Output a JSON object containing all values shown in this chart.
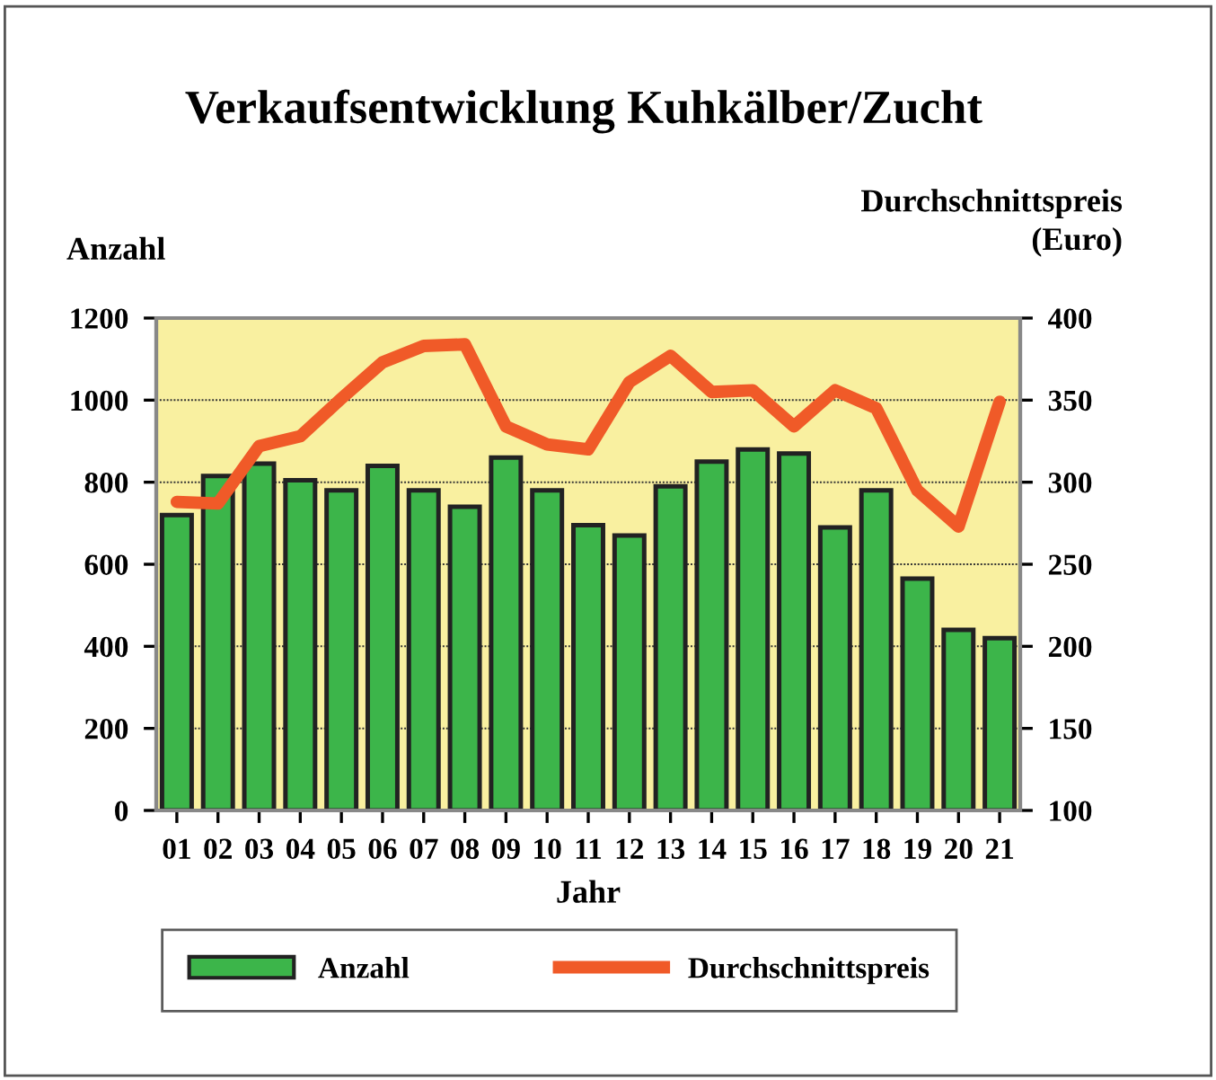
{
  "chart_data": {
    "type": "bar",
    "title": "Verkaufsentwicklung Kuhkälber/Zucht",
    "xlabel": "Jahr",
    "ylabel": "Anzahl",
    "y2label": "Durchschnittspreis\n(Euro)",
    "categories": [
      "01",
      "02",
      "03",
      "04",
      "05",
      "06",
      "07",
      "08",
      "09",
      "10",
      "11",
      "12",
      "13",
      "14",
      "15",
      "16",
      "17",
      "18",
      "19",
      "20",
      "21"
    ],
    "series": [
      {
        "name": "Anzahl",
        "color": "#3cb54a",
        "values": [
          720,
          815,
          845,
          805,
          780,
          840,
          780,
          740,
          860,
          780,
          695,
          670,
          790,
          850,
          880,
          870,
          690,
          780,
          565,
          440,
          420
        ]
      },
      {
        "name": "Durchschnittspreis",
        "type": "line",
        "axis": "y2",
        "color": "#f05a28",
        "values": [
          288,
          287,
          322,
          328,
          351,
          373,
          383,
          384,
          334,
          323,
          320,
          361,
          377,
          355,
          356,
          334,
          356,
          345,
          295,
          273,
          349
        ]
      }
    ],
    "ylim": [
      0,
      1200
    ],
    "yticks": [
      0,
      200,
      400,
      600,
      800,
      1000,
      1200
    ],
    "y2lim": [
      100,
      400
    ],
    "y2ticks": [
      100,
      150,
      200,
      250,
      300,
      350,
      400
    ],
    "grid": "y",
    "legend": "bottom"
  }
}
